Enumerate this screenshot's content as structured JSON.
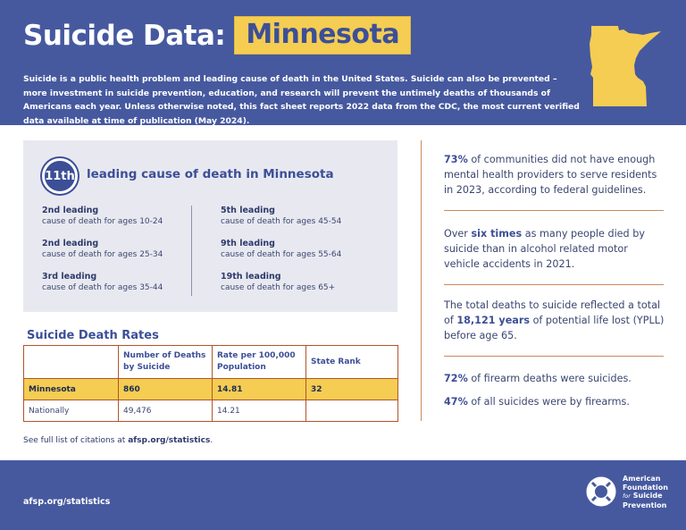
{
  "header": {
    "title": "Suicide Data:",
    "state": "Minnesota",
    "intro": "Suicide is a public health problem and leading cause of death in the United States. Suicide can also be prevented – more investment in suicide prevention, education, and research will prevent the untimely deaths of thousands of Americans each year. Unless otherwise noted, this fact sheet reports 2022 data from the CDC, the most current verified data available at time of publication (May 2024).",
    "map_icon": "minnesota-state-shape"
  },
  "leading": {
    "rank": "11th",
    "text": "leading cause of death in Minnesota",
    "items": [
      {
        "title": "2nd leading",
        "sub": "cause of death for ages 10-24"
      },
      {
        "title": "2nd leading",
        "sub": "cause of death for ages 25-34"
      },
      {
        "title": "3rd leading",
        "sub": "cause of death for ages 35-44"
      },
      {
        "title": "5th leading",
        "sub": "cause of death for ages 45-54"
      },
      {
        "title": "9th leading",
        "sub": "cause of death for ages 55-64"
      },
      {
        "title": "19th leading",
        "sub": "cause of death for ages 65+"
      }
    ]
  },
  "rates": {
    "title": "Suicide Death Rates",
    "headers": [
      "",
      "Number of Deaths by Suicide",
      "Rate per 100,000 Population",
      "State Rank"
    ],
    "rows": [
      {
        "label": "Minnesota",
        "deaths": "860",
        "rate": "14.81",
        "rank": "32"
      },
      {
        "label": "Nationally",
        "deaths": "49,476",
        "rate": "14.21",
        "rank": ""
      }
    ]
  },
  "citation": {
    "prefix": "See full list of citations at ",
    "link": "afsp.org/statistics",
    "suffix": "."
  },
  "facts": [
    {
      "bold": "73%",
      "rest": " of communities did not have enough mental health providers to serve residents in 2023, according to federal guidelines."
    },
    {
      "pre": "Over ",
      "bold": "six times",
      "rest": " as many people died by suicide than in alcohol related motor vehicle accidents in 2021."
    },
    {
      "pre": "The total deaths to suicide reflected a total of ",
      "bold": "18,121 years",
      "rest": " of potential life lost (YPLL) before age 65."
    },
    {
      "bold": "72%",
      "rest": " of firearm deaths were suicides."
    },
    {
      "bold": "47%",
      "rest": " of all suicides were by firearms."
    }
  ],
  "footer": {
    "link": "afsp.org/statistics",
    "logo_line1": "American",
    "logo_line2": "Foundation",
    "logo_line3": "for",
    "logo_line4": "Suicide",
    "logo_line5": "Prevention",
    "logo_icon": "lifebuoy-icon"
  },
  "colors": {
    "brand_blue": "#46599f",
    "accent_yellow": "#f4cd52",
    "table_border": "#b0552b"
  }
}
